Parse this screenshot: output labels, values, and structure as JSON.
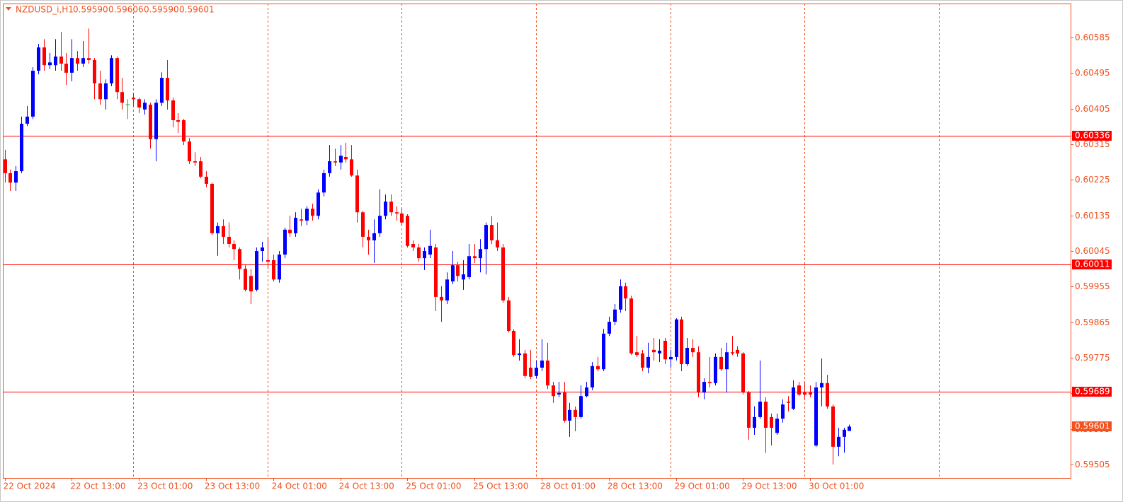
{
  "chart_data": {
    "type": "candlestick",
    "symbol": "NZDUSD_i,H1",
    "header_labels": [
      "0.59590",
      "0.59606",
      "0.59590",
      "0.59601"
    ],
    "categories": [
      "22 Oct 2024",
      null,
      null,
      null,
      null,
      null,
      null,
      null,
      null,
      null,
      null,
      null,
      "22 Oct 13:00",
      null,
      null,
      null,
      null,
      null,
      null,
      null,
      null,
      null,
      null,
      null,
      "23 Oct 01:00",
      null,
      null,
      null,
      null,
      null,
      null,
      null,
      null,
      null,
      null,
      null,
      "23 Oct 13:00",
      null,
      null,
      null,
      null,
      null,
      null,
      null,
      null,
      null,
      null,
      null,
      "24 Oct 01:00",
      null,
      null,
      null,
      null,
      null,
      null,
      null,
      null,
      null,
      null,
      null,
      "24 Oct 13:00",
      null,
      null,
      null,
      null,
      null,
      null,
      null,
      null,
      null,
      null,
      null,
      "25 Oct 01:00",
      null,
      null,
      null,
      null,
      null,
      null,
      null,
      null,
      null,
      null,
      null,
      "25 Oct 13:00",
      null,
      null,
      null,
      null,
      null,
      null,
      null,
      null,
      null,
      null,
      null,
      "28 Oct 01:00",
      null,
      null,
      null,
      null,
      null,
      null,
      null,
      null,
      null,
      null,
      null,
      "28 Oct 13:00",
      null,
      null,
      null,
      null,
      null,
      null,
      null,
      null,
      null,
      null,
      null,
      "29 Oct 01:00",
      null,
      null,
      null,
      null,
      null,
      null,
      null,
      null,
      null,
      null,
      null,
      "29 Oct 13:00",
      null,
      null,
      null,
      null,
      null,
      null,
      null,
      null,
      null,
      null,
      null,
      "30 Oct 01:00",
      null,
      null,
      null,
      null,
      null,
      null,
      null
    ],
    "open": [
      0.60277,
      0.60242,
      0.60218,
      0.60247,
      0.60367,
      0.60385,
      0.60501,
      0.6056,
      0.60515,
      0.60515,
      0.60537,
      0.60519,
      0.60496,
      0.60533,
      0.60519,
      0.60533,
      0.60528,
      0.60469,
      0.60429,
      0.60469,
      0.60533,
      0.60447,
      0.60415,
      0.60433,
      0.60429,
      0.60403,
      0.60415,
      0.60328,
      0.6042,
      0.60483,
      0.60426,
      0.60376,
      0.60376,
      0.60322,
      0.60272,
      0.60272,
      0.60233,
      0.60215,
      0.6009,
      0.60108,
      0.60081,
      0.60063,
      0.6005,
      0.6,
      0.59982,
      0.59947,
      0.60045,
      0.60022,
      0.60022,
      0.59973,
      0.60036,
      0.60099,
      0.6009,
      0.60125,
      0.60122,
      0.60152,
      0.60134,
      0.60193,
      0.60242,
      0.60272,
      0.60269,
      0.60283,
      0.60277,
      0.60236,
      0.60143,
      0.60081,
      0.60072,
      0.6009,
      0.60134,
      0.6017,
      0.60143,
      0.6014,
      0.60134,
      0.60063,
      0.60054,
      0.60027,
      0.60036,
      0.60054,
      0.59929,
      0.5992,
      0.59968,
      0.60009,
      0.59973,
      0.59979,
      0.60032,
      0.60027,
      0.6005,
      0.60111,
      0.60072,
      0.60054,
      0.5992,
      0.59843,
      0.59782,
      0.59786,
      0.5975,
      0.59729,
      0.5975,
      0.59768,
      0.59705,
      0.59682,
      0.59687,
      0.59616,
      0.59643,
      0.59625,
      0.59678,
      0.597,
      0.59754,
      0.59746,
      0.59836,
      0.59866,
      0.59897,
      0.59956,
      0.59925,
      0.59789,
      0.59786,
      0.5975,
      0.59795,
      0.59786,
      0.59818,
      0.59771,
      0.59777,
      0.59872,
      0.59759,
      0.598,
      0.59789,
      0.59687,
      0.59714,
      0.59711,
      0.59777,
      0.59746,
      0.59789,
      0.59795,
      0.59786,
      0.59687,
      0.59598,
      0.59625,
      0.59664,
      0.59625,
      0.59585,
      0.59621,
      0.59664,
      0.59646,
      0.59705,
      0.59687,
      0.59687,
      0.59553,
      0.597,
      0.59711,
      0.59652,
      0.5955,
      0.59575,
      0.5959
    ],
    "high": [
      0.60301,
      0.60251,
      0.6026,
      0.60385,
      0.60412,
      0.6051,
      0.60569,
      0.60581,
      0.60546,
      0.60581,
      0.60599,
      0.60546,
      0.60581,
      0.60551,
      0.60576,
      0.60608,
      0.60533,
      0.60501,
      0.60479,
      0.6054,
      0.60537,
      0.60483,
      0.60429,
      0.60444,
      0.60433,
      0.60429,
      0.6042,
      0.60429,
      0.60497,
      0.60528,
      0.60433,
      0.60394,
      0.60379,
      0.60331,
      0.60295,
      0.60283,
      0.60247,
      0.60218,
      0.60117,
      0.60125,
      0.60117,
      0.60072,
      0.60054,
      0.60009,
      0.6,
      0.60054,
      0.60068,
      0.60081,
      0.60036,
      0.60045,
      0.60104,
      0.60134,
      0.60143,
      0.60152,
      0.60158,
      0.60165,
      0.60201,
      0.60251,
      0.60313,
      0.60304,
      0.60313,
      0.60319,
      0.60313,
      0.60251,
      0.60147,
      0.60099,
      0.60125,
      0.60201,
      0.60188,
      0.60188,
      0.60158,
      0.60152,
      0.60138,
      0.60072,
      0.60063,
      0.60054,
      0.60099,
      0.60063,
      0.59956,
      0.59991,
      0.60045,
      0.60018,
      0.60022,
      0.60063,
      0.60063,
      0.60075,
      0.60117,
      0.60133,
      0.60117,
      0.60063,
      0.59929,
      0.59848,
      0.59822,
      0.59795,
      0.59795,
      0.59768,
      0.59822,
      0.59813,
      0.59714,
      0.59714,
      0.59714,
      0.59661,
      0.59652,
      0.59705,
      0.59714,
      0.59764,
      0.59777,
      0.59848,
      0.59879,
      0.59911,
      0.59973,
      0.59965,
      0.59932,
      0.5983,
      0.59795,
      0.59813,
      0.59825,
      0.59822,
      0.59825,
      0.59795,
      0.59875,
      0.59879,
      0.59825,
      0.59822,
      0.59804,
      0.59723,
      0.59777,
      0.59786,
      0.598,
      0.59813,
      0.5983,
      0.59804,
      0.59789,
      0.59691,
      0.59652,
      0.59768,
      0.59675,
      0.59634,
      0.59634,
      0.5967,
      0.59678,
      0.59718,
      0.59714,
      0.59714,
      0.59705,
      0.59714,
      0.59773,
      0.59732,
      0.59657,
      0.59598,
      0.59598,
      0.59606
    ],
    "low": [
      0.60218,
      0.60197,
      0.60197,
      0.60242,
      0.60361,
      0.60379,
      0.60492,
      0.60501,
      0.60505,
      0.60501,
      0.60501,
      0.60465,
      0.60474,
      0.60501,
      0.6051,
      0.60519,
      0.60429,
      0.60415,
      0.60403,
      0.60462,
      0.60429,
      0.60403,
      0.60379,
      0.60412,
      0.60394,
      0.6039,
      0.60304,
      0.60272,
      0.60412,
      0.60403,
      0.60358,
      0.60344,
      0.60313,
      0.60265,
      0.6026,
      0.60229,
      0.60206,
      0.60086,
      0.60033,
      0.60063,
      0.60054,
      0.60022,
      0.59973,
      0.59943,
      0.59911,
      0.59943,
      0.60018,
      0.6,
      0.59968,
      0.59965,
      0.60027,
      0.60081,
      0.60081,
      0.60108,
      0.60111,
      0.60122,
      0.60125,
      0.60183,
      0.60233,
      0.6026,
      0.60251,
      0.60269,
      0.60233,
      0.60117,
      0.60054,
      0.60036,
      0.60015,
      0.60081,
      0.60125,
      0.60134,
      0.60122,
      0.60111,
      0.60054,
      0.60045,
      0.60018,
      0.59997,
      0.60027,
      0.59893,
      0.59866,
      0.59911,
      0.59961,
      0.59968,
      0.59947,
      0.59973,
      0.60015,
      0.59991,
      0.59986,
      0.60063,
      0.60045,
      0.59914,
      0.59839,
      0.59777,
      0.59768,
      0.59723,
      0.59721,
      0.59723,
      0.59741,
      0.59696,
      0.59661,
      0.59675,
      0.59611,
      0.59575,
      0.59589,
      0.59621,
      0.59675,
      0.59693,
      0.59741,
      0.59741,
      0.5983,
      0.59857,
      0.59889,
      0.59893,
      0.59782,
      0.59777,
      0.59741,
      0.59736,
      0.59768,
      0.59764,
      0.59759,
      0.5975,
      0.59768,
      0.59741,
      0.59754,
      0.59777,
      0.59675,
      0.5967,
      0.597,
      0.59705,
      0.59741,
      0.59687,
      0.59782,
      0.59777,
      0.59682,
      0.59568,
      0.5958,
      0.59621,
      0.59535,
      0.59553,
      0.5958,
      0.59611,
      0.59639,
      0.59643,
      0.59678,
      0.5967,
      0.59675,
      0.5955,
      0.59652,
      0.59646,
      0.59505,
      0.59526,
      0.59535,
      0.5959
    ],
    "close": [
      0.60242,
      0.60218,
      0.60247,
      0.60367,
      0.60385,
      0.60501,
      0.6056,
      0.60515,
      0.60522,
      0.60537,
      0.60519,
      0.60496,
      0.60533,
      0.60519,
      0.60533,
      0.60528,
      0.60469,
      0.60429,
      0.60469,
      0.60533,
      0.60447,
      0.6042,
      0.60415,
      0.60429,
      0.60408,
      0.6042,
      0.60328,
      0.6042,
      0.60483,
      0.60426,
      0.60376,
      0.60372,
      0.60322,
      0.60272,
      0.60269,
      0.60233,
      0.60215,
      0.6009,
      0.60108,
      0.60081,
      0.60063,
      0.6005,
      0.6,
      0.59947,
      0.59943,
      0.60045,
      0.60054,
      0.60018,
      0.59973,
      0.60036,
      0.60099,
      0.6009,
      0.60129,
      0.60122,
      0.60152,
      0.60134,
      0.60193,
      0.60242,
      0.60272,
      0.60269,
      0.60286,
      0.60277,
      0.60236,
      0.60143,
      0.60081,
      0.60072,
      0.6009,
      0.60134,
      0.6017,
      0.60143,
      0.6014,
      0.60117,
      0.60058,
      0.60054,
      0.60027,
      0.60045,
      0.60058,
      0.59929,
      0.5992,
      0.59973,
      0.60009,
      0.59982,
      0.59986,
      0.60032,
      0.60027,
      0.6005,
      0.60111,
      0.60072,
      0.60054,
      0.5992,
      0.59843,
      0.59782,
      0.59786,
      0.59729,
      0.59727,
      0.5975,
      0.59768,
      0.59705,
      0.59678,
      0.59686,
      0.59616,
      0.59643,
      0.59625,
      0.59678,
      0.597,
      0.59754,
      0.59746,
      0.59836,
      0.59866,
      0.59897,
      0.59956,
      0.59925,
      0.59786,
      0.59782,
      0.5975,
      0.59777,
      0.59789,
      0.59793,
      0.59771,
      0.59777,
      0.59872,
      0.59759,
      0.598,
      0.59789,
      0.59687,
      0.59714,
      0.59711,
      0.59777,
      0.59746,
      0.59789,
      0.59786,
      0.59786,
      0.59687,
      0.59598,
      0.59625,
      0.59664,
      0.59598,
      0.59598,
      0.59621,
      0.59657,
      0.59661,
      0.597,
      0.59682,
      0.59682,
      0.59682,
      0.597,
      0.59711,
      0.59652,
      0.5955,
      0.59575,
      0.59593,
      0.59601
    ],
    "ylim": [
      0.59471,
      0.60671
    ],
    "yticks": [
      0.60585,
      0.60495,
      0.60405,
      0.60315,
      0.60225,
      0.60135,
      0.60045,
      0.59955,
      0.59865,
      0.59775,
      0.59685,
      0.59595,
      0.59505
    ],
    "hlines": [
      0.60336,
      0.60011,
      0.59689
    ],
    "grid": true,
    "colors": {
      "bull": "#0000ff",
      "bear": "#ff0000",
      "doji": "#00c000",
      "axis": "#f0501e",
      "hline": "#ff0000",
      "price_label": "#f4511e"
    }
  }
}
